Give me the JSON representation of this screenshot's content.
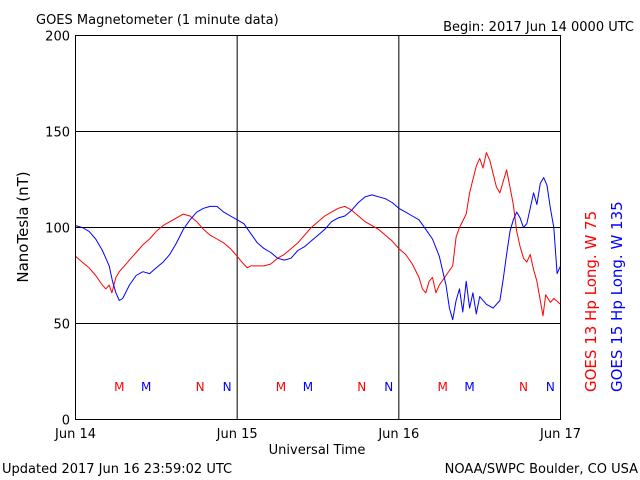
{
  "chart_data": {
    "type": "line",
    "title": "GOES Magnetometer (1 minute data)",
    "begin": "Begin:  2017 Jun 14 0000 UTC",
    "xlabel": "Universal Time",
    "ylabel": "NanoTesla (nT)",
    "ylim": [
      0,
      200
    ],
    "yticks": [
      "0",
      "50",
      "100",
      "150",
      "200"
    ],
    "xlim": [
      0,
      72
    ],
    "xticks": [
      {
        "label": "Jun 14",
        "x": 0
      },
      {
        "label": "Jun 15",
        "x": 24
      },
      {
        "label": "Jun 16",
        "x": 48
      },
      {
        "label": "Jun 17",
        "x": 72
      }
    ],
    "grid": true,
    "updated": "Updated 2017 Jun 16 23:59:02 UTC",
    "credit": "NOAA/SWPC Boulder, CO USA",
    "series": [
      {
        "name": "GOES 13 Hp  Long. W 75",
        "color": "#ff0000",
        "points": [
          [
            0,
            85
          ],
          [
            1,
            82
          ],
          [
            2,
            79
          ],
          [
            3,
            75
          ],
          [
            4,
            70
          ],
          [
            4.5,
            68
          ],
          [
            5,
            70
          ],
          [
            5.4,
            66
          ],
          [
            6,
            74
          ],
          [
            6.5,
            77
          ],
          [
            7,
            79
          ],
          [
            8,
            83
          ],
          [
            9,
            87
          ],
          [
            10,
            91
          ],
          [
            11,
            94
          ],
          [
            12,
            98
          ],
          [
            13,
            101
          ],
          [
            14,
            103
          ],
          [
            15,
            105
          ],
          [
            16,
            107
          ],
          [
            17,
            106
          ],
          [
            18,
            103
          ],
          [
            19,
            99
          ],
          [
            20,
            96
          ],
          [
            21,
            94
          ],
          [
            22,
            92
          ],
          [
            23,
            89
          ],
          [
            24,
            85
          ],
          [
            24.7,
            82
          ],
          [
            25.5,
            79
          ],
          [
            26,
            80
          ],
          [
            27,
            80
          ],
          [
            28,
            80
          ],
          [
            29,
            81
          ],
          [
            30,
            84
          ],
          [
            31,
            86
          ],
          [
            32,
            89
          ],
          [
            33,
            92
          ],
          [
            34,
            96
          ],
          [
            35,
            100
          ],
          [
            36,
            103
          ],
          [
            37,
            106
          ],
          [
            38,
            108
          ],
          [
            39,
            110
          ],
          [
            40,
            111
          ],
          [
            41,
            109
          ],
          [
            42,
            106
          ],
          [
            43,
            103
          ],
          [
            44,
            101
          ],
          [
            45,
            99
          ],
          [
            46,
            96
          ],
          [
            47,
            93
          ],
          [
            48,
            89
          ],
          [
            49,
            86
          ],
          [
            50,
            81
          ],
          [
            51,
            74
          ],
          [
            51.5,
            68
          ],
          [
            52,
            66
          ],
          [
            52.5,
            72
          ],
          [
            53,
            74
          ],
          [
            53.5,
            66
          ],
          [
            54,
            70
          ],
          [
            55,
            75
          ],
          [
            56,
            80
          ],
          [
            56.5,
            95
          ],
          [
            57,
            100
          ],
          [
            58,
            107
          ],
          [
            58.5,
            118
          ],
          [
            59,
            125
          ],
          [
            59.5,
            132
          ],
          [
            60,
            136
          ],
          [
            60.5,
            131
          ],
          [
            61,
            139
          ],
          [
            61.5,
            135
          ],
          [
            62,
            128
          ],
          [
            62.5,
            121
          ],
          [
            63,
            118
          ],
          [
            63.5,
            124
          ],
          [
            64,
            130
          ],
          [
            64.5,
            121
          ],
          [
            65,
            112
          ],
          [
            65.5,
            98
          ],
          [
            66,
            90
          ],
          [
            66.5,
            84
          ],
          [
            67,
            82
          ],
          [
            67.5,
            86
          ],
          [
            68,
            78
          ],
          [
            68.5,
            72
          ],
          [
            69,
            62
          ],
          [
            69.4,
            54
          ],
          [
            69.8,
            65
          ],
          [
            70.5,
            61
          ],
          [
            71,
            63
          ],
          [
            72,
            60
          ]
        ]
      },
      {
        "name": "GOES 15 Hp  Long. W 135",
        "color": "#0000ff",
        "points": [
          [
            0,
            101
          ],
          [
            1,
            100
          ],
          [
            2,
            98
          ],
          [
            3,
            94
          ],
          [
            4,
            88
          ],
          [
            5,
            80
          ],
          [
            5.5,
            72
          ],
          [
            6,
            66
          ],
          [
            6.5,
            62
          ],
          [
            7,
            63
          ],
          [
            8,
            70
          ],
          [
            9,
            75
          ],
          [
            10,
            77
          ],
          [
            11,
            76
          ],
          [
            12,
            79
          ],
          [
            13,
            82
          ],
          [
            14,
            86
          ],
          [
            15,
            92
          ],
          [
            16,
            99
          ],
          [
            17,
            104
          ],
          [
            18,
            108
          ],
          [
            19,
            110
          ],
          [
            20,
            111
          ],
          [
            21,
            111
          ],
          [
            22,
            108
          ],
          [
            23,
            106
          ],
          [
            24,
            104
          ],
          [
            25,
            102
          ],
          [
            26,
            97
          ],
          [
            27,
            92
          ],
          [
            28,
            89
          ],
          [
            29,
            87
          ],
          [
            30,
            84
          ],
          [
            31,
            83
          ],
          [
            32,
            84
          ],
          [
            33,
            88
          ],
          [
            34,
            90
          ],
          [
            35,
            93
          ],
          [
            36,
            96
          ],
          [
            37,
            99
          ],
          [
            38,
            103
          ],
          [
            39,
            105
          ],
          [
            40,
            106
          ],
          [
            41,
            109
          ],
          [
            42,
            113
          ],
          [
            43,
            116
          ],
          [
            44,
            117
          ],
          [
            45,
            116
          ],
          [
            46,
            115
          ],
          [
            47,
            113
          ],
          [
            48,
            110
          ],
          [
            49,
            108
          ],
          [
            50,
            106
          ],
          [
            51,
            104
          ],
          [
            52,
            99
          ],
          [
            53,
            94
          ],
          [
            54,
            85
          ],
          [
            55,
            70
          ],
          [
            55.5,
            58
          ],
          [
            56,
            52
          ],
          [
            56.5,
            62
          ],
          [
            57,
            68
          ],
          [
            57.5,
            56
          ],
          [
            58,
            72
          ],
          [
            58.5,
            58
          ],
          [
            59,
            66
          ],
          [
            59.5,
            55
          ],
          [
            60,
            64
          ],
          [
            61,
            60
          ],
          [
            62,
            58
          ],
          [
            63,
            62
          ],
          [
            63.5,
            73
          ],
          [
            64,
            86
          ],
          [
            64.5,
            98
          ],
          [
            65,
            104
          ],
          [
            65.5,
            108
          ],
          [
            66,
            105
          ],
          [
            66.5,
            100
          ],
          [
            67,
            102
          ],
          [
            67.5,
            110
          ],
          [
            68,
            118
          ],
          [
            68.5,
            112
          ],
          [
            69,
            123
          ],
          [
            69.5,
            126
          ],
          [
            70,
            122
          ],
          [
            70.5,
            110
          ],
          [
            71,
            100
          ],
          [
            71.5,
            76
          ],
          [
            72,
            80
          ]
        ]
      }
    ],
    "event_markers": [
      {
        "label": "M",
        "x": 6.5,
        "color": "#ff0000"
      },
      {
        "label": "M",
        "x": 10.5,
        "color": "#0000ff"
      },
      {
        "label": "N",
        "x": 18.5,
        "color": "#ff0000"
      },
      {
        "label": "N",
        "x": 22.5,
        "color": "#0000ff"
      },
      {
        "label": "M",
        "x": 30.5,
        "color": "#ff0000"
      },
      {
        "label": "M",
        "x": 34.5,
        "color": "#0000ff"
      },
      {
        "label": "N",
        "x": 42.5,
        "color": "#ff0000"
      },
      {
        "label": "N",
        "x": 46.5,
        "color": "#0000ff"
      },
      {
        "label": "M",
        "x": 54.5,
        "color": "#ff0000"
      },
      {
        "label": "M",
        "x": 58.5,
        "color": "#0000ff"
      },
      {
        "label": "N",
        "x": 66.5,
        "color": "#ff0000"
      },
      {
        "label": "N",
        "x": 70.5,
        "color": "#0000ff"
      }
    ],
    "event_marker_level": 17
  }
}
